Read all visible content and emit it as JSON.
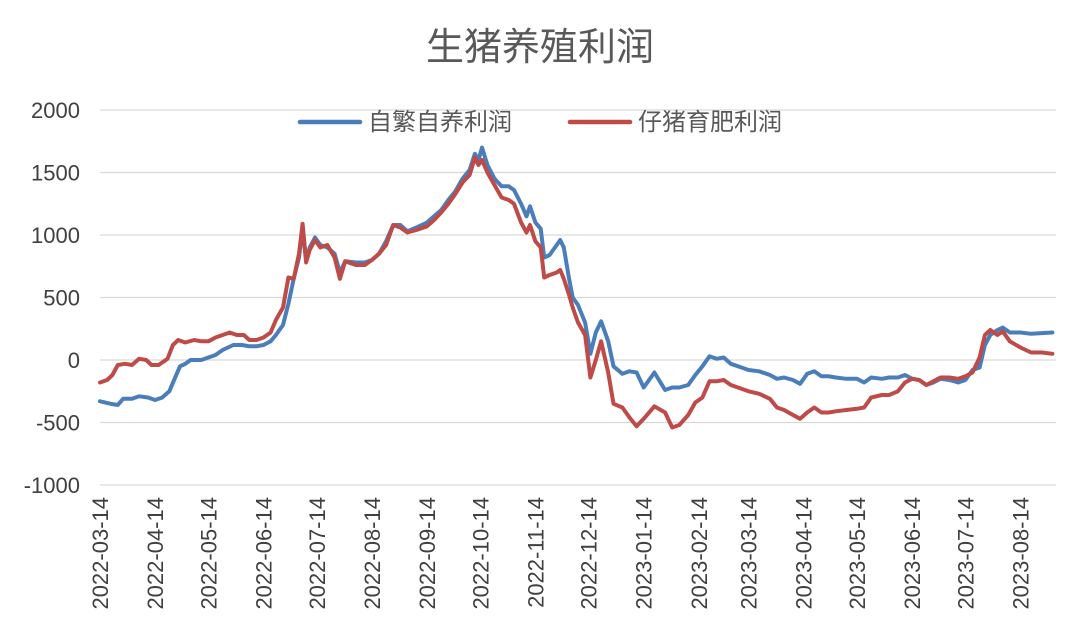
{
  "chart_data": {
    "type": "line",
    "title": "生猪养殖利润",
    "xlabel": "",
    "ylabel": "",
    "ylim": [
      -1000,
      2000
    ],
    "yticks": [
      2000,
      1500,
      1000,
      500,
      0,
      -500,
      -1000
    ],
    "xlim": [
      "2022-03-14",
      "2023-09-03"
    ],
    "xticks": [
      "2022-03-14",
      "2022-04-14",
      "2022-05-14",
      "2022-06-14",
      "2022-07-14",
      "2022-08-14",
      "2022-09-14",
      "2022-10-14",
      "2022-11-14",
      "2022-12-14",
      "2023-01-14",
      "2023-02-14",
      "2023-03-14",
      "2023-04-14",
      "2023-05-14",
      "2023-06-14",
      "2023-07-14",
      "2023-08-14"
    ],
    "grid": true,
    "legend_position": "top-center",
    "series": [
      {
        "name": "自繁自养利润",
        "color": "#4a7ebb",
        "points": [
          [
            "2022-03-14",
            -330
          ],
          [
            "2022-03-20",
            -350
          ],
          [
            "2022-03-24",
            -360
          ],
          [
            "2022-03-27",
            -310
          ],
          [
            "2022-04-01",
            -310
          ],
          [
            "2022-04-05",
            -290
          ],
          [
            "2022-04-10",
            -300
          ],
          [
            "2022-04-14",
            -320
          ],
          [
            "2022-04-18",
            -300
          ],
          [
            "2022-04-22",
            -250
          ],
          [
            "2022-04-25",
            -150
          ],
          [
            "2022-04-28",
            -50
          ],
          [
            "2022-05-01",
            -30
          ],
          [
            "2022-05-04",
            0
          ],
          [
            "2022-05-10",
            0
          ],
          [
            "2022-05-14",
            20
          ],
          [
            "2022-05-18",
            40
          ],
          [
            "2022-05-22",
            80
          ],
          [
            "2022-05-28",
            120
          ],
          [
            "2022-06-02",
            120
          ],
          [
            "2022-06-06",
            110
          ],
          [
            "2022-06-10",
            110
          ],
          [
            "2022-06-14",
            120
          ],
          [
            "2022-06-18",
            150
          ],
          [
            "2022-06-21",
            200
          ],
          [
            "2022-06-25",
            280
          ],
          [
            "2022-06-28",
            450
          ],
          [
            "2022-07-01",
            650
          ],
          [
            "2022-07-04",
            820
          ],
          [
            "2022-07-06",
            1060
          ],
          [
            "2022-07-08",
            800
          ],
          [
            "2022-07-10",
            900
          ],
          [
            "2022-07-13",
            980
          ],
          [
            "2022-07-16",
            920
          ],
          [
            "2022-07-20",
            900
          ],
          [
            "2022-07-24",
            850
          ],
          [
            "2022-07-27",
            700
          ],
          [
            "2022-07-30",
            790
          ],
          [
            "2022-08-05",
            780
          ],
          [
            "2022-08-10",
            780
          ],
          [
            "2022-08-14",
            800
          ],
          [
            "2022-08-18",
            850
          ],
          [
            "2022-08-22",
            950
          ],
          [
            "2022-08-26",
            1080
          ],
          [
            "2022-08-30",
            1080
          ],
          [
            "2022-09-03",
            1030
          ],
          [
            "2022-09-08",
            1060
          ],
          [
            "2022-09-14",
            1100
          ],
          [
            "2022-09-18",
            1150
          ],
          [
            "2022-09-22",
            1200
          ],
          [
            "2022-09-26",
            1280
          ],
          [
            "2022-09-30",
            1350
          ],
          [
            "2022-10-04",
            1450
          ],
          [
            "2022-10-08",
            1520
          ],
          [
            "2022-10-11",
            1650
          ],
          [
            "2022-10-13",
            1600
          ],
          [
            "2022-10-15",
            1700
          ],
          [
            "2022-10-18",
            1560
          ],
          [
            "2022-10-22",
            1450
          ],
          [
            "2022-10-26",
            1390
          ],
          [
            "2022-10-30",
            1390
          ],
          [
            "2022-11-02",
            1360
          ],
          [
            "2022-11-06",
            1250
          ],
          [
            "2022-11-09",
            1150
          ],
          [
            "2022-11-11",
            1230
          ],
          [
            "2022-11-14",
            1100
          ],
          [
            "2022-11-17",
            1050
          ],
          [
            "2022-11-19",
            820
          ],
          [
            "2022-11-22",
            840
          ],
          [
            "2022-11-26",
            920
          ],
          [
            "2022-11-28",
            960
          ],
          [
            "2022-11-30",
            900
          ],
          [
            "2022-12-03",
            650
          ],
          [
            "2022-12-05",
            500
          ],
          [
            "2022-12-08",
            440
          ],
          [
            "2022-12-12",
            300
          ],
          [
            "2022-12-15",
            50
          ],
          [
            "2022-12-18",
            220
          ],
          [
            "2022-12-21",
            310
          ],
          [
            "2022-12-25",
            150
          ],
          [
            "2022-12-28",
            -50
          ],
          [
            "2023-01-02",
            -110
          ],
          [
            "2023-01-06",
            -90
          ],
          [
            "2023-01-10",
            -100
          ],
          [
            "2023-01-14",
            -220
          ],
          [
            "2023-01-20",
            -100
          ],
          [
            "2023-01-26",
            -240
          ],
          [
            "2023-01-30",
            -220
          ],
          [
            "2023-02-03",
            -220
          ],
          [
            "2023-02-08",
            -200
          ],
          [
            "2023-02-12",
            -120
          ],
          [
            "2023-02-16",
            -50
          ],
          [
            "2023-02-20",
            30
          ],
          [
            "2023-02-24",
            10
          ],
          [
            "2023-02-28",
            20
          ],
          [
            "2023-03-04",
            -30
          ],
          [
            "2023-03-10",
            -60
          ],
          [
            "2023-03-14",
            -80
          ],
          [
            "2023-03-20",
            -90
          ],
          [
            "2023-03-26",
            -120
          ],
          [
            "2023-03-30",
            -150
          ],
          [
            "2023-04-03",
            -140
          ],
          [
            "2023-04-08",
            -160
          ],
          [
            "2023-04-12",
            -190
          ],
          [
            "2023-04-16",
            -110
          ],
          [
            "2023-04-20",
            -90
          ],
          [
            "2023-04-24",
            -130
          ],
          [
            "2023-04-28",
            -130
          ],
          [
            "2023-05-02",
            -140
          ],
          [
            "2023-05-08",
            -150
          ],
          [
            "2023-05-14",
            -150
          ],
          [
            "2023-05-18",
            -180
          ],
          [
            "2023-05-22",
            -140
          ],
          [
            "2023-05-28",
            -150
          ],
          [
            "2023-06-01",
            -140
          ],
          [
            "2023-06-06",
            -140
          ],
          [
            "2023-06-10",
            -120
          ],
          [
            "2023-06-14",
            -150
          ],
          [
            "2023-06-18",
            -160
          ],
          [
            "2023-06-22",
            -200
          ],
          [
            "2023-06-26",
            -180
          ],
          [
            "2023-06-30",
            -150
          ],
          [
            "2023-07-05",
            -160
          ],
          [
            "2023-07-10",
            -180
          ],
          [
            "2023-07-14",
            -160
          ],
          [
            "2023-07-18",
            -80
          ],
          [
            "2023-07-22",
            -60
          ],
          [
            "2023-07-25",
            120
          ],
          [
            "2023-07-28",
            200
          ],
          [
            "2023-08-01",
            240
          ],
          [
            "2023-08-04",
            260
          ],
          [
            "2023-08-08",
            220
          ],
          [
            "2023-08-14",
            220
          ],
          [
            "2023-08-20",
            210
          ],
          [
            "2023-08-26",
            215
          ],
          [
            "2023-09-01",
            220
          ]
        ]
      },
      {
        "name": "仔猪育肥利润",
        "color": "#be4b48",
        "points": [
          [
            "2022-03-14",
            -180
          ],
          [
            "2022-03-18",
            -160
          ],
          [
            "2022-03-21",
            -120
          ],
          [
            "2022-03-24",
            -40
          ],
          [
            "2022-03-28",
            -30
          ],
          [
            "2022-04-01",
            -40
          ],
          [
            "2022-04-05",
            10
          ],
          [
            "2022-04-09",
            0
          ],
          [
            "2022-04-12",
            -40
          ],
          [
            "2022-04-16",
            -40
          ],
          [
            "2022-04-21",
            10
          ],
          [
            "2022-04-24",
            120
          ],
          [
            "2022-04-27",
            160
          ],
          [
            "2022-05-01",
            140
          ],
          [
            "2022-05-06",
            160
          ],
          [
            "2022-05-10",
            150
          ],
          [
            "2022-05-14",
            150
          ],
          [
            "2022-05-18",
            180
          ],
          [
            "2022-05-22",
            200
          ],
          [
            "2022-05-26",
            220
          ],
          [
            "2022-05-30",
            200
          ],
          [
            "2022-06-03",
            200
          ],
          [
            "2022-06-06",
            160
          ],
          [
            "2022-06-10",
            160
          ],
          [
            "2022-06-14",
            180
          ],
          [
            "2022-06-18",
            220
          ],
          [
            "2022-06-21",
            320
          ],
          [
            "2022-06-25",
            420
          ],
          [
            "2022-06-28",
            660
          ],
          [
            "2022-07-01",
            650
          ],
          [
            "2022-07-04",
            850
          ],
          [
            "2022-07-06",
            1090
          ],
          [
            "2022-07-08",
            780
          ],
          [
            "2022-07-10",
            880
          ],
          [
            "2022-07-13",
            960
          ],
          [
            "2022-07-16",
            900
          ],
          [
            "2022-07-20",
            920
          ],
          [
            "2022-07-24",
            820
          ],
          [
            "2022-07-27",
            650
          ],
          [
            "2022-07-30",
            790
          ],
          [
            "2022-08-05",
            760
          ],
          [
            "2022-08-10",
            760
          ],
          [
            "2022-08-14",
            800
          ],
          [
            "2022-08-18",
            850
          ],
          [
            "2022-08-22",
            920
          ],
          [
            "2022-08-26",
            1080
          ],
          [
            "2022-08-30",
            1060
          ],
          [
            "2022-09-03",
            1020
          ],
          [
            "2022-09-08",
            1040
          ],
          [
            "2022-09-14",
            1070
          ],
          [
            "2022-09-18",
            1120
          ],
          [
            "2022-09-22",
            1180
          ],
          [
            "2022-09-26",
            1250
          ],
          [
            "2022-09-30",
            1330
          ],
          [
            "2022-10-04",
            1420
          ],
          [
            "2022-10-08",
            1480
          ],
          [
            "2022-10-11",
            1620
          ],
          [
            "2022-10-13",
            1560
          ],
          [
            "2022-10-15",
            1600
          ],
          [
            "2022-10-18",
            1500
          ],
          [
            "2022-10-22",
            1400
          ],
          [
            "2022-10-26",
            1300
          ],
          [
            "2022-10-30",
            1280
          ],
          [
            "2022-11-02",
            1250
          ],
          [
            "2022-11-06",
            1100
          ],
          [
            "2022-11-09",
            1020
          ],
          [
            "2022-11-11",
            1080
          ],
          [
            "2022-11-14",
            950
          ],
          [
            "2022-11-17",
            900
          ],
          [
            "2022-11-19",
            660
          ],
          [
            "2022-11-22",
            680
          ],
          [
            "2022-11-26",
            700
          ],
          [
            "2022-11-28",
            720
          ],
          [
            "2022-11-30",
            650
          ],
          [
            "2022-12-03",
            520
          ],
          [
            "2022-12-05",
            420
          ],
          [
            "2022-12-08",
            300
          ],
          [
            "2022-12-12",
            200
          ],
          [
            "2022-12-15",
            -140
          ],
          [
            "2022-12-18",
            0
          ],
          [
            "2022-12-21",
            150
          ],
          [
            "2022-12-25",
            -100
          ],
          [
            "2022-12-28",
            -350
          ],
          [
            "2023-01-02",
            -380
          ],
          [
            "2023-01-06",
            -460
          ],
          [
            "2023-01-10",
            -530
          ],
          [
            "2023-01-14",
            -470
          ],
          [
            "2023-01-20",
            -370
          ],
          [
            "2023-01-26",
            -420
          ],
          [
            "2023-01-30",
            -540
          ],
          [
            "2023-02-03",
            -520
          ],
          [
            "2023-02-08",
            -440
          ],
          [
            "2023-02-12",
            -340
          ],
          [
            "2023-02-16",
            -300
          ],
          [
            "2023-02-20",
            -170
          ],
          [
            "2023-02-24",
            -170
          ],
          [
            "2023-02-28",
            -160
          ],
          [
            "2023-03-04",
            -200
          ],
          [
            "2023-03-10",
            -230
          ],
          [
            "2023-03-14",
            -250
          ],
          [
            "2023-03-20",
            -270
          ],
          [
            "2023-03-26",
            -310
          ],
          [
            "2023-03-30",
            -380
          ],
          [
            "2023-04-03",
            -400
          ],
          [
            "2023-04-08",
            -440
          ],
          [
            "2023-04-12",
            -470
          ],
          [
            "2023-04-16",
            -420
          ],
          [
            "2023-04-20",
            -380
          ],
          [
            "2023-04-24",
            -420
          ],
          [
            "2023-04-28",
            -420
          ],
          [
            "2023-05-02",
            -410
          ],
          [
            "2023-05-08",
            -400
          ],
          [
            "2023-05-14",
            -390
          ],
          [
            "2023-05-18",
            -380
          ],
          [
            "2023-05-22",
            -300
          ],
          [
            "2023-05-28",
            -280
          ],
          [
            "2023-06-01",
            -280
          ],
          [
            "2023-06-06",
            -250
          ],
          [
            "2023-06-10",
            -180
          ],
          [
            "2023-06-14",
            -150
          ],
          [
            "2023-06-18",
            -160
          ],
          [
            "2023-06-22",
            -200
          ],
          [
            "2023-06-26",
            -170
          ],
          [
            "2023-06-30",
            -140
          ],
          [
            "2023-07-05",
            -140
          ],
          [
            "2023-07-10",
            -150
          ],
          [
            "2023-07-14",
            -130
          ],
          [
            "2023-07-18",
            -100
          ],
          [
            "2023-07-22",
            20
          ],
          [
            "2023-07-25",
            200
          ],
          [
            "2023-07-28",
            240
          ],
          [
            "2023-08-01",
            200
          ],
          [
            "2023-08-04",
            230
          ],
          [
            "2023-08-08",
            150
          ],
          [
            "2023-08-14",
            100
          ],
          [
            "2023-08-20",
            60
          ],
          [
            "2023-08-26",
            60
          ],
          [
            "2023-09-01",
            50
          ]
        ]
      }
    ]
  }
}
